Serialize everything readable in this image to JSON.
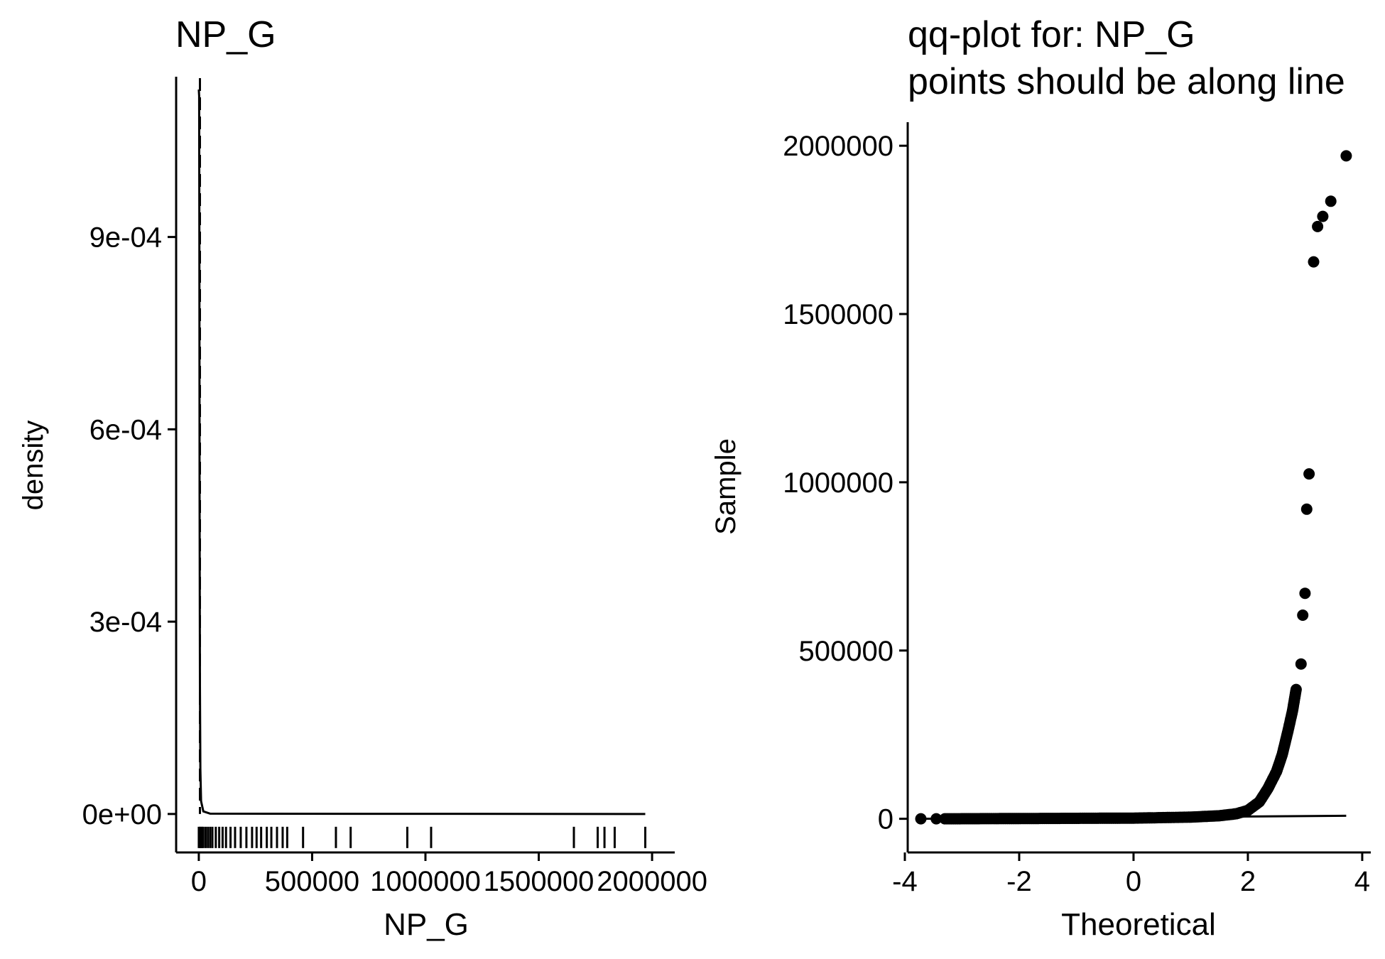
{
  "chart_data": [
    {
      "type": "area",
      "title": "NP_G",
      "xlabel": "NP_G",
      "ylabel": "density",
      "xlim": [
        -100000,
        2100000
      ],
      "ylim": [
        -6e-05,
        0.00115
      ],
      "x_ticks": [
        0,
        500000,
        1000000,
        1500000,
        2000000
      ],
      "x_tick_labels": [
        "0",
        "500000",
        "1000000",
        "1500000",
        "2000000"
      ],
      "y_ticks": [
        0,
        0.0003,
        0.0006,
        0.0009
      ],
      "y_tick_labels": [
        "0e+00",
        "3e-04",
        "6e-04",
        "9e-04"
      ],
      "mean_line_x": 5000,
      "density_curve": [
        {
          "x": 0,
          "y": 0.00113
        },
        {
          "x": 1500,
          "y": 0.00112
        },
        {
          "x": 2500,
          "y": 0.0009
        },
        {
          "x": 3500,
          "y": 0.0005
        },
        {
          "x": 5000,
          "y": 0.0002
        },
        {
          "x": 7000,
          "y": 7e-05
        },
        {
          "x": 10000,
          "y": 2e-05
        },
        {
          "x": 20000,
          "y": 4e-06
        },
        {
          "x": 50000,
          "y": 5e-07
        },
        {
          "x": 1970000,
          "y": 0
        }
      ],
      "rug_x": [
        0,
        5000,
        10000,
        15000,
        20000,
        30000,
        40000,
        50000,
        60000,
        75000,
        90000,
        105000,
        120000,
        140000,
        160000,
        185000,
        210000,
        235000,
        255000,
        275000,
        300000,
        320000,
        345000,
        370000,
        390000,
        460000,
        605000,
        670000,
        920000,
        1025000,
        1655000,
        1760000,
        1790000,
        1835000,
        1970000
      ],
      "grid": false
    },
    {
      "type": "scatter",
      "title": "qq-plot for: NP_G",
      "subtitle": "points should be along line",
      "xlabel": "Theoretical",
      "ylabel": "Sample",
      "xlim": [
        -3.95,
        4.15
      ],
      "ylim": [
        -100000,
        2070000
      ],
      "x_ticks": [
        -4,
        -2,
        0,
        2,
        4
      ],
      "x_tick_labels": [
        "-4",
        "-2",
        "0",
        "2",
        "4"
      ],
      "y_ticks": [
        0,
        500000,
        1000000,
        1500000,
        2000000
      ],
      "y_tick_labels": [
        "0",
        "500000",
        "1000000",
        "1500000",
        "2000000"
      ],
      "reference_line": [
        [
          -3.72,
          0
        ],
        [
          3.72,
          9000
        ]
      ],
      "outliers": [
        {
          "x": -3.72,
          "y": 0
        },
        {
          "x": -3.45,
          "y": 0
        },
        {
          "x": 2.93,
          "y": 460000
        },
        {
          "x": 2.96,
          "y": 605000
        },
        {
          "x": 3.0,
          "y": 670000
        },
        {
          "x": 3.03,
          "y": 920000
        },
        {
          "x": 3.07,
          "y": 1025000
        },
        {
          "x": 3.15,
          "y": 1655000
        },
        {
          "x": 3.22,
          "y": 1760000
        },
        {
          "x": 3.31,
          "y": 1790000
        },
        {
          "x": 3.45,
          "y": 1835000
        },
        {
          "x": 3.72,
          "y": 1970000
        }
      ],
      "bulk_curve": [
        {
          "x": -3.3,
          "y": 0
        },
        {
          "x": 0,
          "y": 2000
        },
        {
          "x": 1.0,
          "y": 5000
        },
        {
          "x": 1.5,
          "y": 9000
        },
        {
          "x": 1.8,
          "y": 15000
        },
        {
          "x": 2.0,
          "y": 25000
        },
        {
          "x": 2.2,
          "y": 50000
        },
        {
          "x": 2.35,
          "y": 90000
        },
        {
          "x": 2.5,
          "y": 140000
        },
        {
          "x": 2.6,
          "y": 190000
        },
        {
          "x": 2.7,
          "y": 260000
        },
        {
          "x": 2.78,
          "y": 320000
        },
        {
          "x": 2.85,
          "y": 390000
        }
      ],
      "grid": false
    }
  ]
}
